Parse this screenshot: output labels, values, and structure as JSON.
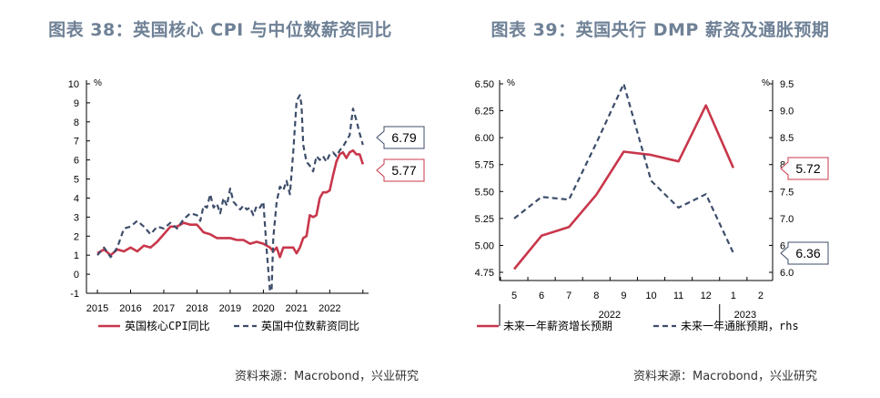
{
  "colors": {
    "red": "#c8374b",
    "navy": "#3d4d6a",
    "title": "#6f8196"
  },
  "chart_data": [
    {
      "type": "line",
      "title": "图表 38：英国核心 CPI 与中位数薪资同比",
      "ylabel": "%",
      "ylim": [
        -1,
        10
      ],
      "yticks": [
        "-1",
        "0",
        "1",
        "2",
        "3",
        "4",
        "5",
        "6",
        "7",
        "8",
        "9",
        "10"
      ],
      "xlim": [
        2014.67,
        2023.17
      ],
      "xtick_labels": [
        "2015",
        "2016",
        "2017",
        "2018",
        "2019",
        "2020",
        "2021",
        "2022"
      ],
      "series": [
        {
          "name": "英国核心CPI同比",
          "color": "#c8374b",
          "dash": false,
          "x": [
            2015.0,
            2015.2,
            2015.4,
            2015.6,
            2015.8,
            2016.0,
            2016.2,
            2016.4,
            2016.6,
            2016.8,
            2017.0,
            2017.2,
            2017.4,
            2017.6,
            2017.8,
            2018.0,
            2018.2,
            2018.4,
            2018.6,
            2018.8,
            2019.0,
            2019.2,
            2019.4,
            2019.6,
            2019.8,
            2020.0,
            2020.2,
            2020.3,
            2020.4,
            2020.5,
            2020.6,
            2020.8,
            2020.9,
            2021.0,
            2021.1,
            2021.2,
            2021.3,
            2021.4,
            2021.5,
            2021.6,
            2021.7,
            2021.8,
            2021.9,
            2022.0,
            2022.1,
            2022.2,
            2022.3,
            2022.4,
            2022.5,
            2022.6,
            2022.7,
            2022.8,
            2022.9,
            2023.0
          ],
          "y": [
            1.1,
            1.3,
            1.0,
            1.3,
            1.2,
            1.4,
            1.2,
            1.5,
            1.4,
            1.7,
            2.1,
            2.5,
            2.5,
            2.7,
            2.6,
            2.6,
            2.2,
            2.1,
            1.9,
            1.9,
            1.9,
            1.8,
            1.8,
            1.6,
            1.7,
            1.6,
            1.4,
            1.2,
            1.4,
            0.9,
            1.4,
            1.4,
            1.4,
            1.1,
            1.4,
            1.9,
            2.0,
            3.1,
            3.0,
            3.1,
            4.0,
            4.3,
            4.3,
            4.4,
            5.2,
            5.9,
            6.3,
            6.4,
            6.1,
            6.4,
            6.5,
            6.3,
            6.3,
            5.77
          ]
        },
        {
          "name": "英国中位数薪资同比",
          "color": "#3d4d6a",
          "dash": true,
          "x": [
            2015.0,
            2015.2,
            2015.4,
            2015.6,
            2015.8,
            2016.0,
            2016.2,
            2016.4,
            2016.6,
            2016.8,
            2017.0,
            2017.2,
            2017.4,
            2017.6,
            2017.8,
            2018.0,
            2018.1,
            2018.2,
            2018.3,
            2018.4,
            2018.5,
            2018.6,
            2018.7,
            2018.8,
            2018.9,
            2019.0,
            2019.1,
            2019.2,
            2019.3,
            2019.4,
            2019.5,
            2019.6,
            2019.7,
            2019.8,
            2019.9,
            2020.0,
            2020.1,
            2020.2,
            2020.25,
            2020.3,
            2020.4,
            2020.5,
            2020.6,
            2020.7,
            2020.8,
            2020.9,
            2021.0,
            2021.1,
            2021.15,
            2021.2,
            2021.3,
            2021.4,
            2021.5,
            2021.6,
            2021.7,
            2021.8,
            2021.9,
            2022.0,
            2022.1,
            2022.2,
            2022.3,
            2022.4,
            2022.5,
            2022.6,
            2022.7,
            2022.8,
            2022.9,
            2023.0
          ],
          "y": [
            1.0,
            1.4,
            0.9,
            1.4,
            2.4,
            2.5,
            2.8,
            2.5,
            2.1,
            2.5,
            2.4,
            2.7,
            2.4,
            2.9,
            3.2,
            3.1,
            2.8,
            3.6,
            3.5,
            4.2,
            3.5,
            3.7,
            3.2,
            4.0,
            3.6,
            4.5,
            3.8,
            3.6,
            3.4,
            3.6,
            3.4,
            3.5,
            3.1,
            3.6,
            3.5,
            3.8,
            1.3,
            -0.9,
            -0.8,
            1.9,
            3.8,
            4.6,
            4.4,
            4.9,
            4.2,
            6.4,
            9.1,
            9.4,
            8.9,
            6.8,
            5.9,
            5.7,
            5.4,
            6.2,
            6.0,
            6.2,
            5.9,
            6.3,
            6.4,
            6.2,
            6.5,
            6.7,
            7.0,
            7.3,
            8.7,
            8.1,
            7.4,
            6.79
          ]
        }
      ],
      "annotations": [
        {
          "text": "6.79",
          "color": "#3d4d6a",
          "y": 6.79
        },
        {
          "text": "5.77",
          "color": "#c8374b",
          "y": 5.77
        }
      ],
      "source": "资料来源：Macrobond，兴业研究"
    },
    {
      "type": "line",
      "title": "图表 39：英国央行 DMP 薪资及通胀预期",
      "ylabel": "%",
      "y2label": "%",
      "ylim": [
        4.75,
        6.5
      ],
      "yticks": [
        "4.75",
        "5.00",
        "5.25",
        "5.50",
        "5.75",
        "6.00",
        "6.25",
        "6.50"
      ],
      "y2lim": [
        6.0,
        9.5
      ],
      "y2ticks": [
        "6.0",
        "6.5",
        "7.0",
        "7.5",
        "8.0",
        "8.5",
        "9.0",
        "9.5"
      ],
      "categories": [
        "5",
        "6",
        "7",
        "8",
        "9",
        "10",
        "11",
        "12",
        "1",
        "2"
      ],
      "year_labels": [
        "2022",
        "2023"
      ],
      "series": [
        {
          "name": "未来一年薪资增长预期",
          "color": "#c8374b",
          "dash": false,
          "axis": "left",
          "values": [
            4.78,
            5.09,
            5.17,
            5.47,
            5.87,
            5.84,
            5.78,
            6.3,
            5.72,
            null
          ]
        },
        {
          "name": "未来一年通胀预期，rhs",
          "color": "#3d4d6a",
          "dash": true,
          "axis": "right",
          "values": [
            7.0,
            7.4,
            7.35,
            8.4,
            9.5,
            7.7,
            7.2,
            7.45,
            6.36,
            null
          ]
        }
      ],
      "annotations": [
        {
          "text": "5.72",
          "color": "#c8374b",
          "y": 5.72,
          "axis": "left"
        },
        {
          "text": "6.36",
          "color": "#3d4d6a",
          "y": 6.36,
          "axis": "right"
        }
      ],
      "source": "资料来源：Macrobond，兴业研究"
    }
  ]
}
